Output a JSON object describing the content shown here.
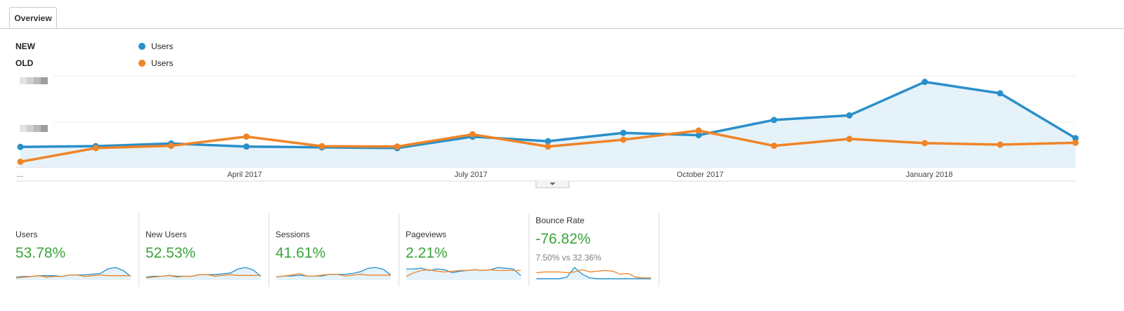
{
  "tab": {
    "label": "Overview"
  },
  "legend": [
    {
      "group": "NEW",
      "label": "Users",
      "color": "#2a8fca"
    },
    {
      "group": "OLD",
      "label": "Users",
      "color": "#f08427"
    }
  ],
  "chart_data": {
    "type": "line",
    "x_start_label": "...",
    "x_tick_labels": [
      "April 2017",
      "July 2017",
      "October 2017",
      "January 2018"
    ],
    "y_tick_labels": [
      "",
      ""
    ],
    "grid": true,
    "legend_position": "top-left",
    "series": [
      {
        "group": "NEW",
        "name": "Users",
        "color": "#2a8fca",
        "area": true,
        "values": [
          26.5,
          27.5,
          31,
          27,
          26,
          25,
          40,
          34,
          45,
          42,
          62,
          68,
          112,
          97,
          38
        ]
      },
      {
        "group": "OLD",
        "name": "Users",
        "color": "#f08427",
        "area": false,
        "values": [
          7,
          25,
          28,
          40,
          27.5,
          27,
          43,
          27,
          36,
          48,
          28,
          37,
          31.5,
          29.5,
          32
        ]
      }
    ]
  },
  "metrics": [
    {
      "name": "Users",
      "value": "53.78%",
      "sub": "",
      "spark": {
        "a": [
          3,
          4,
          4,
          5,
          5,
          5,
          4,
          6,
          6,
          6,
          7,
          8,
          14,
          16,
          12,
          4
        ],
        "b": [
          2,
          3,
          4,
          5,
          3,
          4,
          4,
          6,
          6,
          4,
          5,
          6,
          5,
          5,
          5,
          5
        ]
      }
    },
    {
      "name": "New Users",
      "value": "52.53%",
      "sub": "",
      "spark": {
        "a": [
          3,
          4,
          4,
          5,
          4,
          4,
          4,
          6,
          6,
          6,
          7,
          8,
          13,
          15,
          12,
          4
        ],
        "b": [
          2,
          3,
          4,
          5,
          3,
          4,
          4,
          6,
          6,
          4,
          5,
          6,
          5,
          5,
          5,
          5
        ]
      }
    },
    {
      "name": "Sessions",
      "value": "41.61%",
      "sub": "",
      "spark": {
        "a": [
          3,
          4,
          4,
          5,
          4,
          4,
          4,
          6,
          6,
          6,
          7,
          9,
          13,
          14,
          12,
          5
        ],
        "b": [
          3,
          4,
          5,
          7,
          4,
          4,
          5,
          6,
          6,
          4,
          5,
          6,
          5,
          5,
          5,
          5
        ]
      }
    },
    {
      "name": "Pageviews",
      "value": "2.21%",
      "sub": "",
      "spark": {
        "a": [
          14,
          14,
          15,
          12,
          14,
          13,
          9,
          11,
          12,
          13,
          12,
          13,
          16,
          15,
          14,
          5
        ],
        "b": [
          4,
          9,
          12,
          13,
          11,
          10,
          11,
          12,
          12,
          13,
          12,
          13,
          12,
          12,
          12,
          12
        ]
      }
    },
    {
      "name": "Bounce Rate",
      "value": "-76.82%",
      "sub": "7.50% vs 32.36%",
      "spark": {
        "a": [
          1,
          1,
          1,
          1,
          3,
          16,
          7,
          2,
          1,
          1,
          1,
          1,
          1,
          1,
          1,
          1
        ],
        "b": [
          9,
          10,
          10,
          10,
          9,
          10,
          13,
          10,
          11,
          12,
          11,
          7,
          8,
          3,
          2,
          2
        ]
      }
    }
  ]
}
